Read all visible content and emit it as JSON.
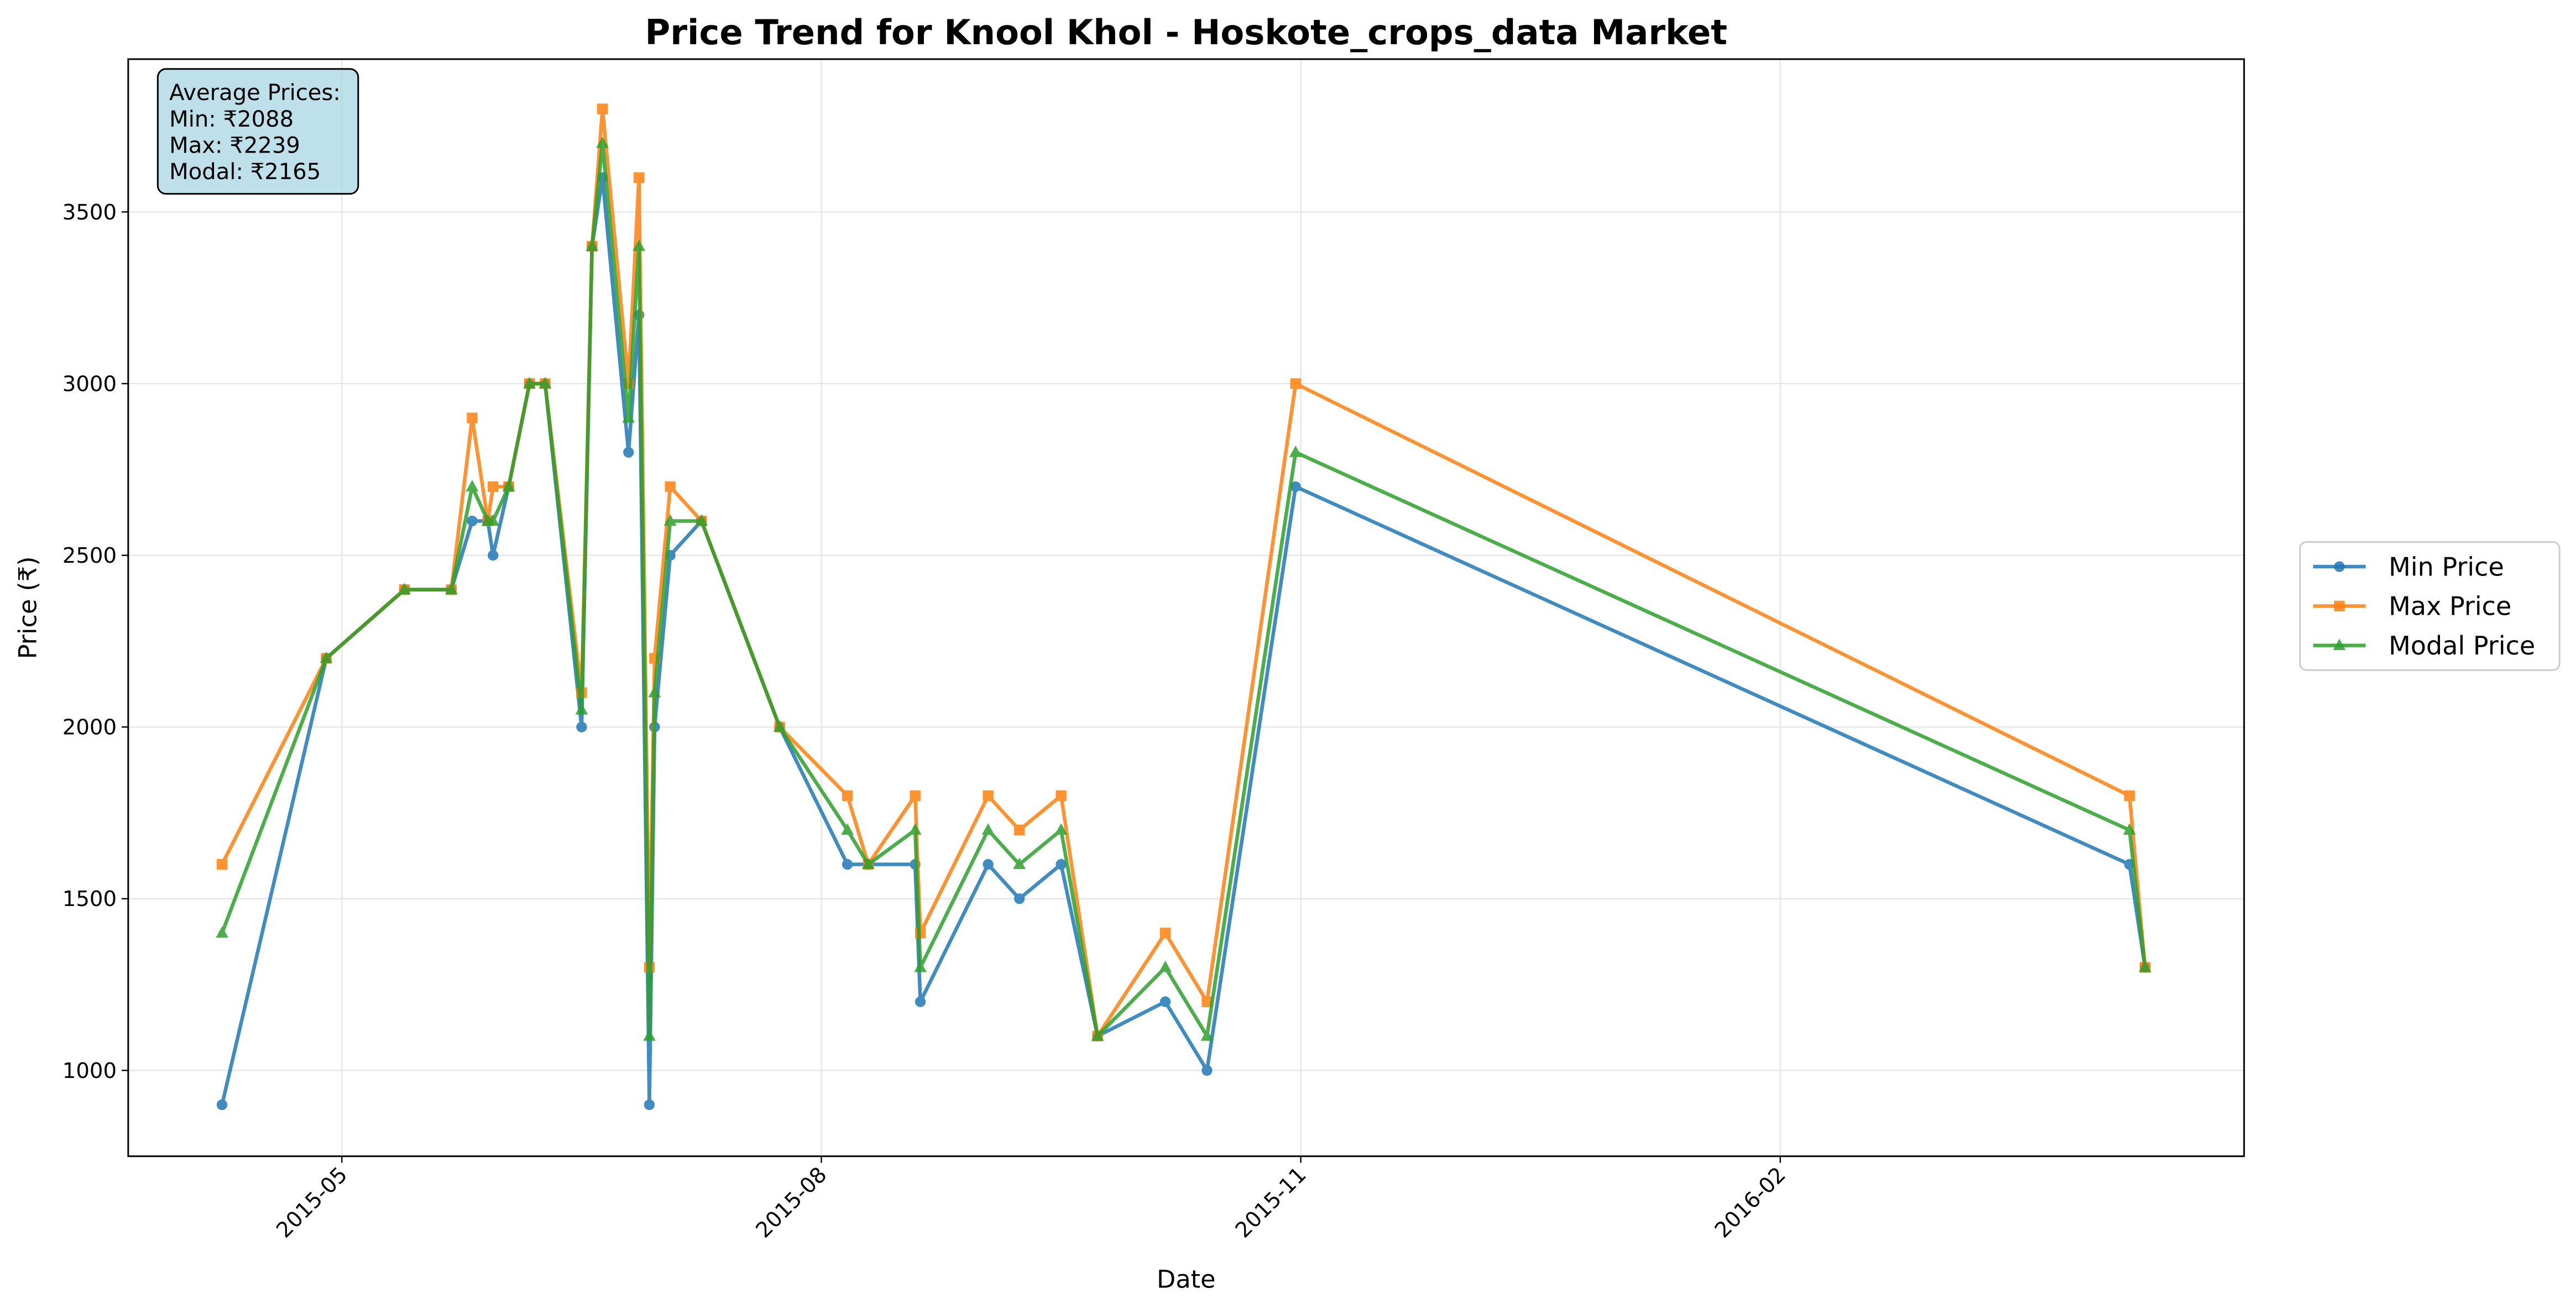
{
  "chart_data": {
    "type": "line",
    "title": "Price Trend for Knool Khol - Hoskote_crops_data Market",
    "xlabel": "Date",
    "ylabel": "Price (₹)",
    "annotation": [
      "Average Prices:",
      "Min: ₹2088",
      "Max: ₹2239",
      "Modal: ₹2165"
    ],
    "x": [
      -23,
      -3,
      12,
      21,
      25,
      28,
      29,
      32,
      36,
      39,
      46,
      48,
      50,
      55,
      57,
      59,
      60,
      63,
      69,
      84,
      97,
      101,
      110,
      111,
      124,
      130,
      138,
      145,
      158,
      166,
      183,
      343,
      346
    ],
    "series": [
      {
        "name": "Min Price",
        "color": "#1f77b4",
        "marker": "circle",
        "values": [
          900,
          2200,
          2400,
          2400,
          2600,
          2600,
          2500,
          2700,
          3000,
          3000,
          2000,
          3400,
          3600,
          2800,
          3200,
          900,
          2000,
          2500,
          2600,
          2000,
          1600,
          1600,
          1600,
          1200,
          1600,
          1500,
          1600,
          1100,
          1200,
          1000,
          2700,
          1600,
          1300
        ]
      },
      {
        "name": "Max Price",
        "color": "#ff7f0e",
        "marker": "square",
        "values": [
          1600,
          2200,
          2400,
          2400,
          2900,
          2600,
          2700,
          2700,
          3000,
          3000,
          2100,
          3400,
          3800,
          3000,
          3600,
          1300,
          2200,
          2700,
          2600,
          2000,
          1800,
          1600,
          1800,
          1400,
          1800,
          1700,
          1800,
          1100,
          1400,
          1200,
          3000,
          1800,
          1300
        ]
      },
      {
        "name": "Modal Price",
        "color": "#2ca02c",
        "marker": "triangle",
        "values": [
          1400,
          2200,
          2400,
          2400,
          2700,
          2600,
          2600,
          2700,
          3000,
          3000,
          2050,
          3400,
          3700,
          2900,
          3400,
          1100,
          2100,
          2600,
          2600,
          2000,
          1700,
          1600,
          1700,
          1300,
          1700,
          1600,
          1700,
          1100,
          1300,
          1100,
          2800,
          1700,
          1300
        ]
      }
    ],
    "xlim": [
      -41,
      365
    ],
    "xticks": [
      {
        "value": 0,
        "label": "2015-05"
      },
      {
        "value": 92,
        "label": "2015-08"
      },
      {
        "value": 184,
        "label": "2015-11"
      },
      {
        "value": 276,
        "label": "2016-02"
      }
    ],
    "ylim": [
      750,
      3945
    ],
    "yticks": [
      1000,
      1500,
      2000,
      2500,
      3000,
      3500
    ],
    "grid": true,
    "legend": "right"
  }
}
